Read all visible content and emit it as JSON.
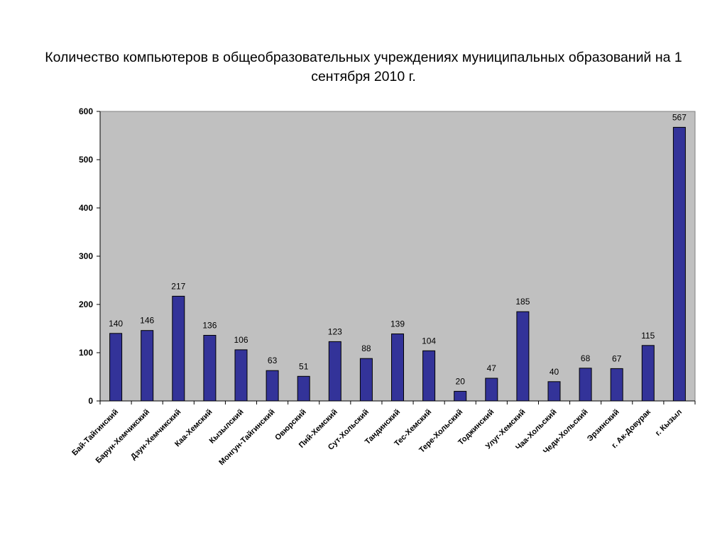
{
  "chart_data": {
    "type": "bar",
    "title": "Количество компьютеров в общеобразовательных учреждениях муниципальных образований на 1 сентября 2010 г.",
    "xlabel": "",
    "ylabel": "",
    "ylim": [
      0,
      600
    ],
    "yticks": [
      "0",
      "100",
      "200",
      "300",
      "400",
      "500",
      "600"
    ],
    "grid": false,
    "legend": "none",
    "colors": {
      "bar": "#333399",
      "plot_bg": "#c0c0c0",
      "page_bg": "#ffffff"
    },
    "categories": [
      "Бай-Тайгинский",
      "Барун-Хемчикский",
      "Дзун-Хемчикский",
      "Каа-Хемский",
      "Кызылский",
      "Монгун-Тайгинский",
      "Овюрский",
      "Пий-Хемский",
      "Сут-Хольский",
      "Тандинский",
      "Тес-Хемский",
      "Тере-Хольский",
      "Тоджинский",
      "Улуг-Хемский",
      "Чаа-Хольский",
      "Чеди-Хольский",
      "Эрзинский",
      "г. Ак-Довурак",
      "г. Кызыл"
    ],
    "values": [
      140,
      146,
      217,
      136,
      106,
      63,
      51,
      123,
      88,
      139,
      104,
      20,
      47,
      185,
      40,
      68,
      67,
      115,
      567
    ],
    "data_labels": [
      "140",
      "146",
      "217",
      "136",
      "106",
      "63",
      "51",
      "123",
      "88",
      "139",
      "104",
      "20",
      "47",
      "185",
      "40",
      "68",
      "67",
      "115",
      "567"
    ]
  }
}
